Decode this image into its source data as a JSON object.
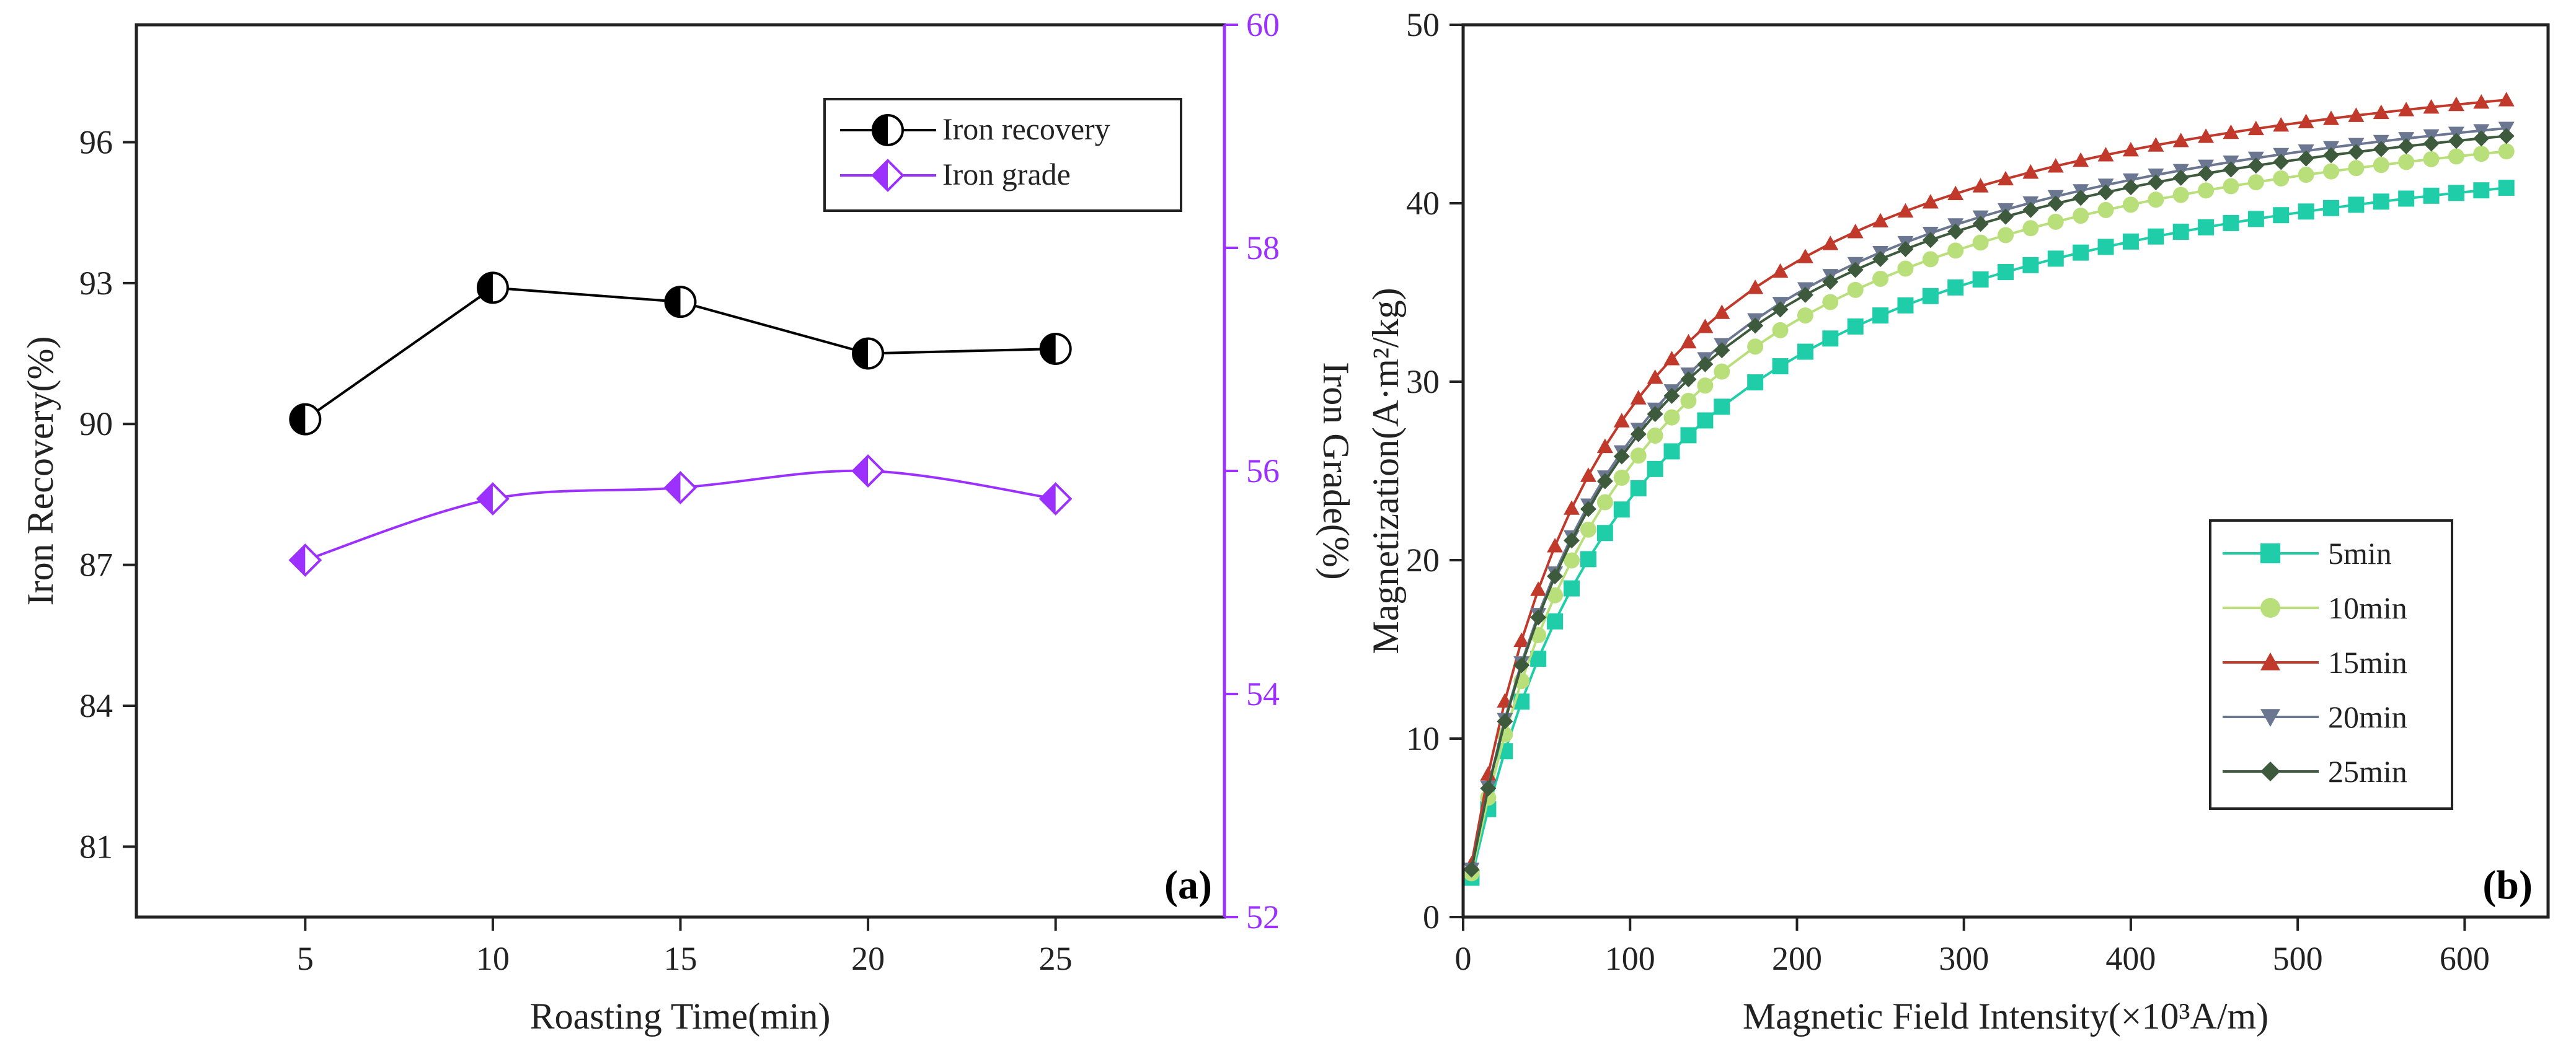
{
  "chart_data": [
    {
      "type": "line",
      "panel_label": "(a)",
      "title": "",
      "xlabel": "Roasting Time(min)",
      "ylabel": "Iron Recovery(%)",
      "y2label": "Iron Grade(%)",
      "xlim": [
        0.5,
        29.5
      ],
      "ylim": [
        79.5,
        98.5
      ],
      "y2lim": [
        52,
        60
      ],
      "xticks": [
        "5",
        "10",
        "15",
        "20",
        "25"
      ],
      "yticks": [
        "81",
        "84",
        "87",
        "90",
        "93",
        "96"
      ],
      "y2ticks": [
        "52",
        "54",
        "56",
        "58",
        "60"
      ],
      "colors": {
        "recovery": "#000000",
        "grade": "#9b30ff",
        "right_axis": "#9b30ff"
      },
      "legend_position": "top-right",
      "series": [
        {
          "name": "Iron recovery",
          "axis": "left",
          "marker": "half-filled-circle",
          "x": [
            5,
            10,
            15,
            20,
            25
          ],
          "values": [
            90.1,
            92.9,
            92.6,
            91.5,
            91.6
          ]
        },
        {
          "name": "Iron grade",
          "axis": "right",
          "marker": "half-filled-diamond",
          "x": [
            5,
            10,
            15,
            20,
            25
          ],
          "values": [
            55.2,
            55.75,
            55.85,
            56.0,
            55.75
          ]
        }
      ]
    },
    {
      "type": "line",
      "panel_label": "(b)",
      "title": "",
      "xlabel": "Magnetic Field Intensity(×10³A/m)",
      "ylabel": "Magnetization(A·m²/kg)",
      "xlim": [
        0,
        650
      ],
      "ylim": [
        0,
        50
      ],
      "xticks": [
        "0",
        "100",
        "200",
        "300",
        "400",
        "500",
        "600"
      ],
      "yticks": [
        "0",
        "10",
        "20",
        "30",
        "40",
        "50"
      ],
      "legend_position": "bottom-right",
      "series": [
        {
          "name": "5min",
          "color": "#1fcea8",
          "marker": "square",
          "sat": 47.6,
          "half": 103
        },
        {
          "name": "10min",
          "color": "#b8df7a",
          "marker": "circle",
          "sat": 49.5,
          "half": 96
        },
        {
          "name": "15min",
          "color": "#c0392b",
          "marker": "triangle-up",
          "sat": 51.8,
          "half": 82
        },
        {
          "name": "20min",
          "color": "#6b7690",
          "marker": "triangle-down",
          "sat": 50.5,
          "half": 89
        },
        {
          "name": "25min",
          "color": "#3d5a3d",
          "marker": "diamond",
          "sat": 50.0,
          "half": 89
        }
      ],
      "x_values": [
        5,
        15,
        25,
        35,
        45,
        55,
        65,
        75,
        85,
        95,
        105,
        115,
        125,
        135,
        145,
        155,
        175,
        190,
        205,
        220,
        235,
        250,
        265,
        280,
        295,
        310,
        325,
        340,
        355,
        370,
        385,
        400,
        415,
        430,
        445,
        460,
        475,
        490,
        505,
        520,
        535,
        550,
        565,
        580,
        595,
        610,
        625
      ]
    }
  ]
}
